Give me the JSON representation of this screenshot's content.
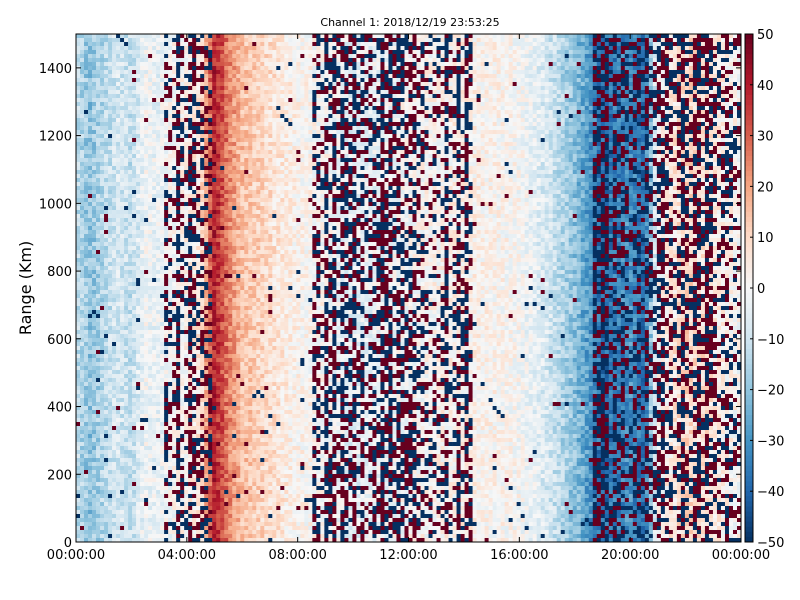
{
  "chart_data": {
    "type": "heatmap",
    "title": "Channel 1: 2018/12/19 23:53:25",
    "ylabel": "Range (Km)",
    "xlabel": "",
    "x_ticks": [
      "00:00:00",
      "04:00:00",
      "08:00:00",
      "12:00:00",
      "16:00:00",
      "20:00:00",
      "00:00:00"
    ],
    "xlim_hours": [
      0,
      24
    ],
    "y_ticks": [
      "0",
      "200",
      "400",
      "600",
      "800",
      "1000",
      "1200",
      "1400"
    ],
    "ylim": [
      0,
      1500
    ],
    "colorbar": {
      "ticks": [
        "50",
        "40",
        "30",
        "20",
        "10",
        "0",
        "−10",
        "−20",
        "−30",
        "−40",
        "−50"
      ],
      "range": [
        -50,
        50
      ],
      "colormap": "RdBu_r"
    },
    "column_profile_hours": [
      {
        "h": 0.0,
        "v": -12
      },
      {
        "h": 0.5,
        "v": -20
      },
      {
        "h": 1.0,
        "v": -14
      },
      {
        "h": 1.5,
        "v": -8
      },
      {
        "h": 2.0,
        "v": -12
      },
      {
        "h": 2.5,
        "v": -2
      },
      {
        "h": 3.0,
        "v": -4
      },
      {
        "h": 3.5,
        "v": 0
      },
      {
        "h": 4.0,
        "v": 2
      },
      {
        "h": 4.5,
        "v": 6
      },
      {
        "h": 5.0,
        "v": 40
      },
      {
        "h": 5.5,
        "v": 25
      },
      {
        "h": 6.0,
        "v": 15
      },
      {
        "h": 7.0,
        "v": 8
      },
      {
        "h": 8.0,
        "v": 2
      },
      {
        "h": 9.0,
        "v": 0
      },
      {
        "h": 10.0,
        "v": -5
      },
      {
        "h": 12.0,
        "v": 0
      },
      {
        "h": 14.0,
        "v": 3
      },
      {
        "h": 15.0,
        "v": 2
      },
      {
        "h": 16.0,
        "v": 0
      },
      {
        "h": 17.0,
        "v": -8
      },
      {
        "h": 18.0,
        "v": -20
      },
      {
        "h": 19.0,
        "v": -38
      },
      {
        "h": 20.0,
        "v": -30
      },
      {
        "h": 20.5,
        "v": -38
      },
      {
        "h": 21.0,
        "v": 0
      },
      {
        "h": 22.0,
        "v": 10
      },
      {
        "h": 23.0,
        "v": 5
      },
      {
        "h": 24.0,
        "v": 0
      }
    ],
    "noisy_bands_hours": [
      [
        3.2,
        4.9
      ],
      [
        8.6,
        14.3
      ],
      [
        18.6,
        21.0
      ],
      [
        21.0,
        24.0
      ]
    ],
    "colors": {
      "low": "#053061",
      "mid": "#f7f7f7",
      "high": "#67001f",
      "axis": "#000000",
      "background": "#ffffff"
    }
  }
}
